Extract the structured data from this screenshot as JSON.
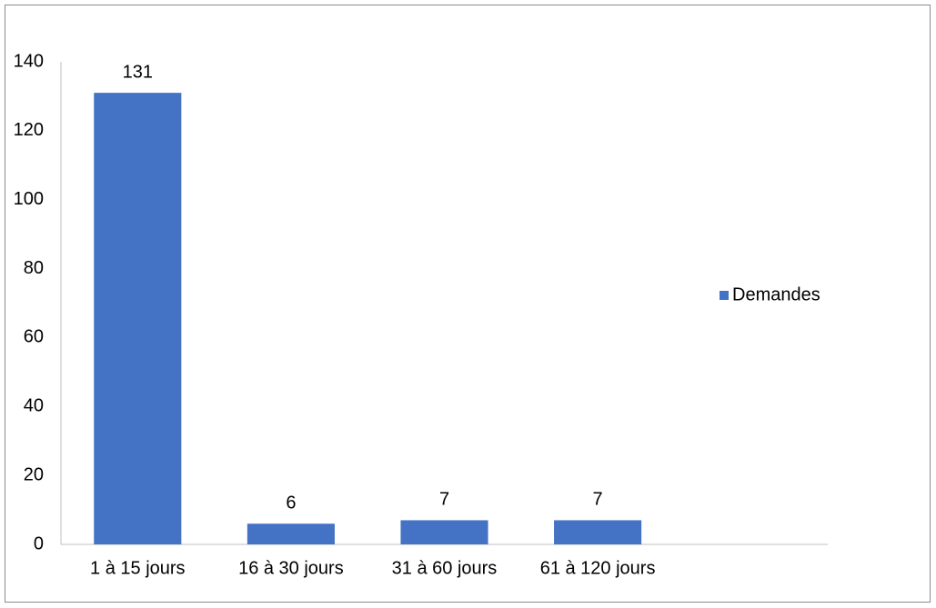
{
  "chart_data": {
    "type": "bar",
    "categories": [
      "1 à 15 jours",
      "16 à 30 jours",
      "31 à 60 jours",
      "61 à 120 jours",
      null
    ],
    "series": [
      {
        "name": "Demandes",
        "color": "#4472c4",
        "values": [
          131,
          6,
          7,
          7,
          null
        ]
      }
    ],
    "ylim": [
      0,
      140
    ],
    "yticks": [
      0,
      20,
      40,
      60,
      80,
      100,
      120,
      140
    ],
    "grid": false,
    "legend": "right"
  }
}
